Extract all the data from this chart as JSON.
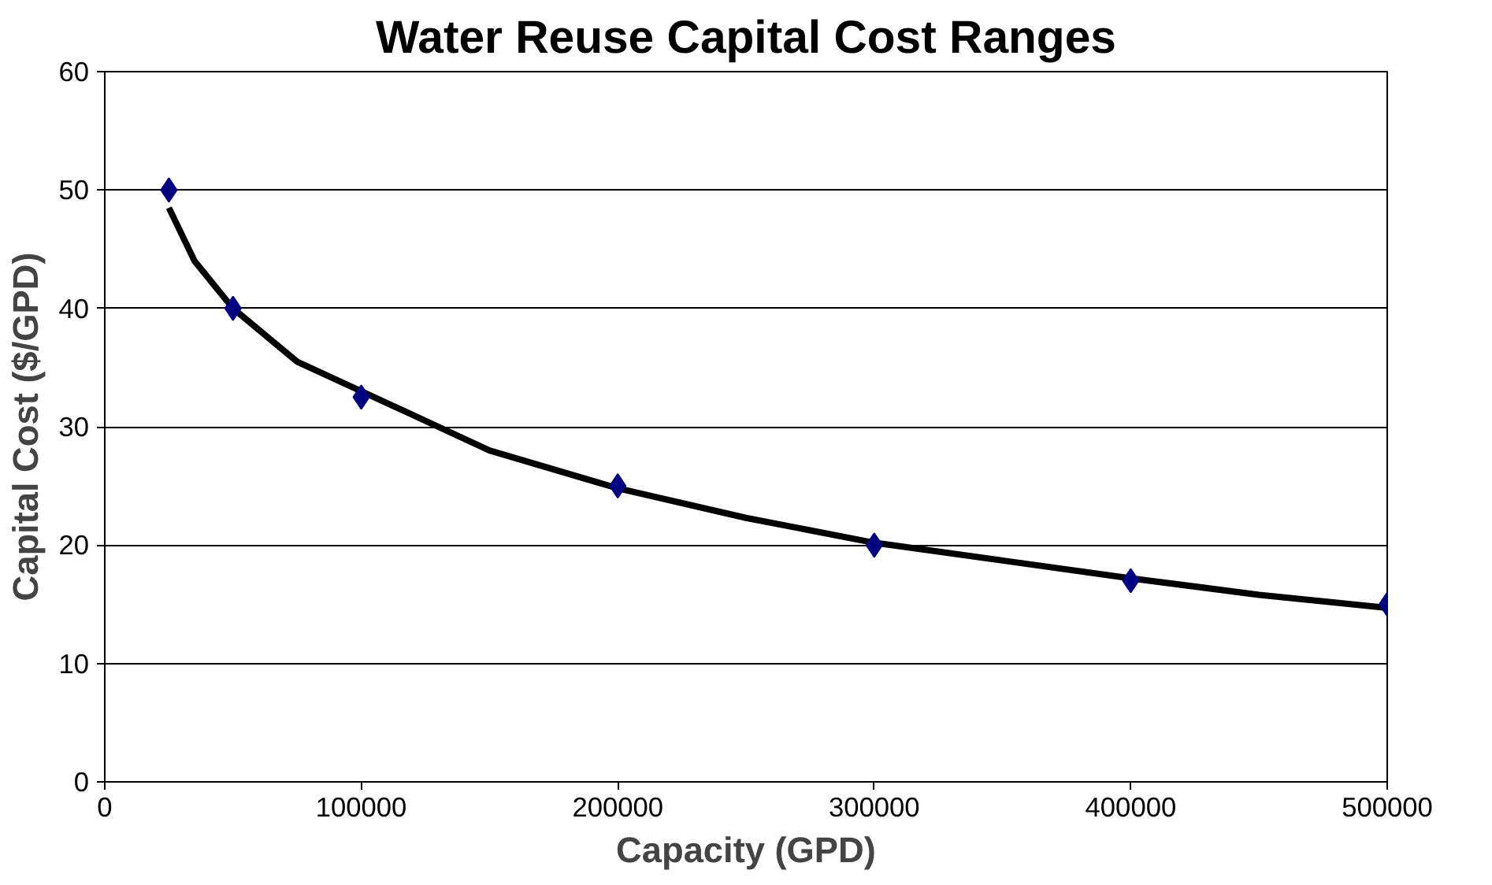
{
  "chart_data": {
    "type": "scatter",
    "title": "Water Reuse Capital Cost Ranges",
    "xlabel": "Capacity (GPD)",
    "ylabel": "Capital Cost ($/GPD)",
    "xlim": [
      0,
      500000
    ],
    "xticks": [
      0,
      100000,
      200000,
      300000,
      400000,
      500000
    ],
    "ylim": [
      0,
      60
    ],
    "yticks": [
      0,
      10,
      20,
      30,
      40,
      50,
      60
    ],
    "grid": "y",
    "series": [
      {
        "marker": "diamond",
        "color": "#000080",
        "x": [
          25000,
          50000,
          100000,
          200000,
          300000,
          400000,
          500000
        ],
        "values": [
          50,
          40,
          32.5,
          25,
          20,
          17,
          15
        ]
      },
      {
        "type": "line",
        "color": "#000000",
        "line_style": "solid",
        "x": [
          25000,
          35000,
          50000,
          75000,
          100000,
          150000,
          200000,
          250000,
          300000,
          350000,
          400000,
          450000,
          500000
        ],
        "values": [
          48.5,
          44,
          40,
          35.5,
          33,
          28,
          24.8,
          22.3,
          20.2,
          18.7,
          17.2,
          15.8,
          14.7
        ]
      }
    ]
  }
}
